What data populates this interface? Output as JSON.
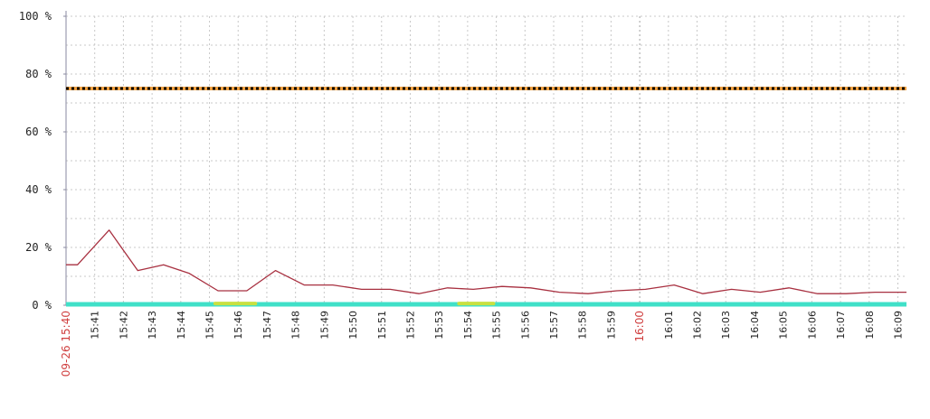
{
  "chart_data": {
    "type": "line",
    "y_unit": "%",
    "ylim": [
      0,
      100
    ],
    "y_ticks": [
      {
        "value": 0,
        "label": "0 %"
      },
      {
        "value": 20,
        "label": "20 %"
      },
      {
        "value": 40,
        "label": "40 %"
      },
      {
        "value": 60,
        "label": "60 %"
      },
      {
        "value": 80,
        "label": "80 %"
      },
      {
        "value": 100,
        "label": "100 %"
      }
    ],
    "y_minor_step": 10,
    "grid": true,
    "x_ticks": [
      {
        "value": 0,
        "label": "09-26 15:40",
        "highlight": true
      },
      {
        "value": 1,
        "label": "15:41"
      },
      {
        "value": 2,
        "label": "15:42"
      },
      {
        "value": 3,
        "label": "15:43"
      },
      {
        "value": 4,
        "label": "15:44"
      },
      {
        "value": 5,
        "label": "15:45"
      },
      {
        "value": 6,
        "label": "15:46"
      },
      {
        "value": 7,
        "label": "15:47"
      },
      {
        "value": 8,
        "label": "15:48"
      },
      {
        "value": 9,
        "label": "15:49"
      },
      {
        "value": 10,
        "label": "15:50"
      },
      {
        "value": 11,
        "label": "15:51"
      },
      {
        "value": 12,
        "label": "15:52"
      },
      {
        "value": 13,
        "label": "15:53"
      },
      {
        "value": 14,
        "label": "15:54"
      },
      {
        "value": 15,
        "label": "15:55"
      },
      {
        "value": 16,
        "label": "15:56"
      },
      {
        "value": 17,
        "label": "15:57"
      },
      {
        "value": 18,
        "label": "15:58"
      },
      {
        "value": 19,
        "label": "15:59"
      },
      {
        "value": 20,
        "label": "16:00",
        "highlight": true
      },
      {
        "value": 21,
        "label": "16:01"
      },
      {
        "value": 22,
        "label": "16:02"
      },
      {
        "value": 23,
        "label": "16:03"
      },
      {
        "value": 24,
        "label": "16:04"
      },
      {
        "value": 25,
        "label": "16:05"
      },
      {
        "value": 26,
        "label": "16:06"
      },
      {
        "value": 27,
        "label": "16:07"
      },
      {
        "value": 28,
        "label": "16:08"
      },
      {
        "value": 29,
        "label": "16:09"
      }
    ],
    "xlim": [
      0,
      29.3
    ],
    "threshold": {
      "value": 75,
      "color": "#f0a040",
      "dot_color": "#000000"
    },
    "series": [
      {
        "color": "#a83040",
        "x": [
          0,
          0.4,
          1.5,
          2.5,
          3.4,
          4.3,
          5.3,
          6.3,
          7.3,
          8.3,
          9.3,
          10.3,
          11.3,
          12.3,
          13.3,
          14.2,
          15.2,
          16.2,
          17.2,
          18.2,
          19.2,
          20.2,
          21.2,
          22.2,
          23.2,
          24.2,
          25.2,
          26.2,
          27.2,
          28.2,
          29.3
        ],
        "y": [
          14,
          14,
          26,
          12,
          14,
          11,
          5,
          5,
          12,
          7,
          7,
          5.5,
          5.5,
          4,
          6,
          5.5,
          6.5,
          6,
          4.5,
          4,
          5,
          5.5,
          7,
          4,
          5.5,
          4.5,
          6,
          4,
          4,
          4.5,
          4.5
        ]
      },
      {
        "color": "#40e0c8",
        "x": [
          0,
          29.3
        ],
        "y": [
          0.3,
          0.3
        ]
      },
      {
        "color": "#c8e040",
        "x": [
          5.2,
          6.6,
          13.7,
          14.9
        ],
        "y": [
          0.6,
          0.6,
          0.6,
          0.6
        ],
        "segments": [
          [
            5.2,
            6.6
          ],
          [
            13.7,
            14.9
          ]
        ]
      }
    ]
  }
}
